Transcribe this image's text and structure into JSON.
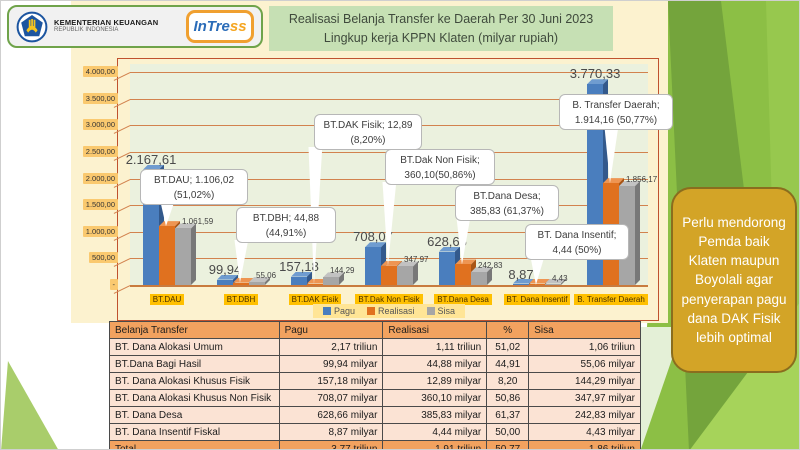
{
  "header": {
    "ministry_line1": "KEMENTERIAN KEUANGAN",
    "ministry_line2": "REPUBLIK INDONESIA",
    "intress_part1": "InTre",
    "intress_part2": "ss",
    "title_line1": "Realisasi Belanja Transfer ke Daerah   Per 30  Juni 2023",
    "title_line2": "Lingkup kerja KPPN Klaten (milyar rupiah)"
  },
  "chart_data": {
    "type": "bar",
    "title": "Realisasi Belanja Transfer ke Daerah Per 30 Juni 2023 (milyar rupiah)",
    "categories": [
      "BT.DAU",
      "BT.DBH",
      "BT.DAK Fisik",
      "BT.Dak Non Fisik",
      "BT.Dana Desa",
      "BT. Dana Insentif",
      "B. Transfer Daerah"
    ],
    "series": [
      {
        "name": "Pagu",
        "color": "#4A7EBE",
        "values": [
          2167.61,
          99.94,
          157.18,
          708.07,
          628.66,
          8.87,
          3770.33
        ]
      },
      {
        "name": "Realisasi",
        "color": "#E0711F",
        "values": [
          1106.02,
          44.88,
          12.89,
          360.1,
          385.83,
          4.44,
          1914.16
        ]
      },
      {
        "name": "Sisa",
        "color": "#A6A6A6",
        "values": [
          1061.59,
          55.06,
          144.29,
          347.97,
          242.83,
          4.43,
          1856.17
        ]
      }
    ],
    "pagu_labels": [
      "2.167,61",
      "99,94",
      "157,18",
      "708,07",
      "628,66",
      "8,87",
      "3.770,33"
    ],
    "sisa_labels": [
      "1.061,59",
      "55,06",
      "144,29",
      "347,97",
      "242,83",
      "4,43",
      "1.856,17"
    ],
    "annotations": [
      {
        "line1": "BT.DAU;  1.106,02",
        "line2": "(51,02%)"
      },
      {
        "line1": "BT.DBH;  44,88",
        "line2": "(44,91%)"
      },
      {
        "line1": "BT.DAK Fisik;  12,89",
        "line2": "(8,20%)"
      },
      {
        "line1": "BT.Dak Non Fisik;",
        "line2": "360,10(50,86%)"
      },
      {
        "line1": "BT.Dana Desa;",
        "line2": "385,83 (61,37%)"
      },
      {
        "line1": "BT. Dana Insentif;",
        "line2": "4,44 (50%)"
      },
      {
        "line1": "B. Transfer Daerah;",
        "line2": "1.914,16 (50,77%)"
      }
    ],
    "y_ticks": [
      "4.000,00",
      "3.500,00",
      "3.000,00",
      "2.500,00",
      "2.000,00",
      "1.500,00",
      "1.000,00",
      "500,00",
      "-"
    ],
    "ylim": [
      0,
      4000
    ],
    "grid": true,
    "legend": [
      "Pagu",
      "Realisasi",
      "Sisa"
    ],
    "legend_position": "bottom"
  },
  "table": {
    "headers": [
      "Belanja Transfer",
      "Pagu",
      "Realisasi",
      "%",
      "Sisa"
    ],
    "rows": [
      [
        "BT. Dana Alokasi Umum",
        "2,17 triliun",
        "1,11  triliun",
        "51,02",
        "1,06 triliun"
      ],
      [
        "BT.Dana Bagi Hasil",
        "99,94 milyar",
        "44,88 milyar",
        "44,91",
        "55,06 milyar"
      ],
      [
        "BT. Dana Alokasi Khusus Fisik",
        "157,18 milyar",
        "12,89 milyar",
        "8,20",
        "144,29 milyar"
      ],
      [
        "BT. Dana Alokasi Khusus Non Fisik",
        "708,07 milyar",
        "360,10 milyar",
        "50,86",
        "347,97 milyar"
      ],
      [
        "BT. Dana Desa",
        "628,66 milyar",
        "385,83 milyar",
        "61,37",
        "242,83 milyar"
      ],
      [
        "BT. Dana Insentif Fiskal",
        "8,87 milyar",
        "4,44 milyar",
        "50,00",
        "4,43 milyar"
      ]
    ],
    "total_row": [
      "Total",
      "3,77 triliun",
      "1,91 triliun",
      "50,77",
      "1,86 triliun"
    ]
  },
  "callout": {
    "text": "Perlu mendorong Pemda baik Klaten maupun Boyolali  agar penyerapan pagu dana DAK Fisik lebih optimal"
  },
  "colors": {
    "pagu": "#4A7EBE",
    "realisasi": "#E0711F",
    "sisa": "#A6A6A6",
    "cream_panel": "#FCF2CF",
    "plot_background": "#EBF1DE",
    "gridline": "#D2824E",
    "x_label_highlight": "#FFC000",
    "y_label_highlight": "#FAC96F",
    "legend_highlight": "#FFE596",
    "title_box": "#C6E0B4",
    "table_header": "#F2A25F",
    "table_row": "#FBE3D4",
    "gold_callout": "#D3A427",
    "green_band": "#8CBF45"
  }
}
